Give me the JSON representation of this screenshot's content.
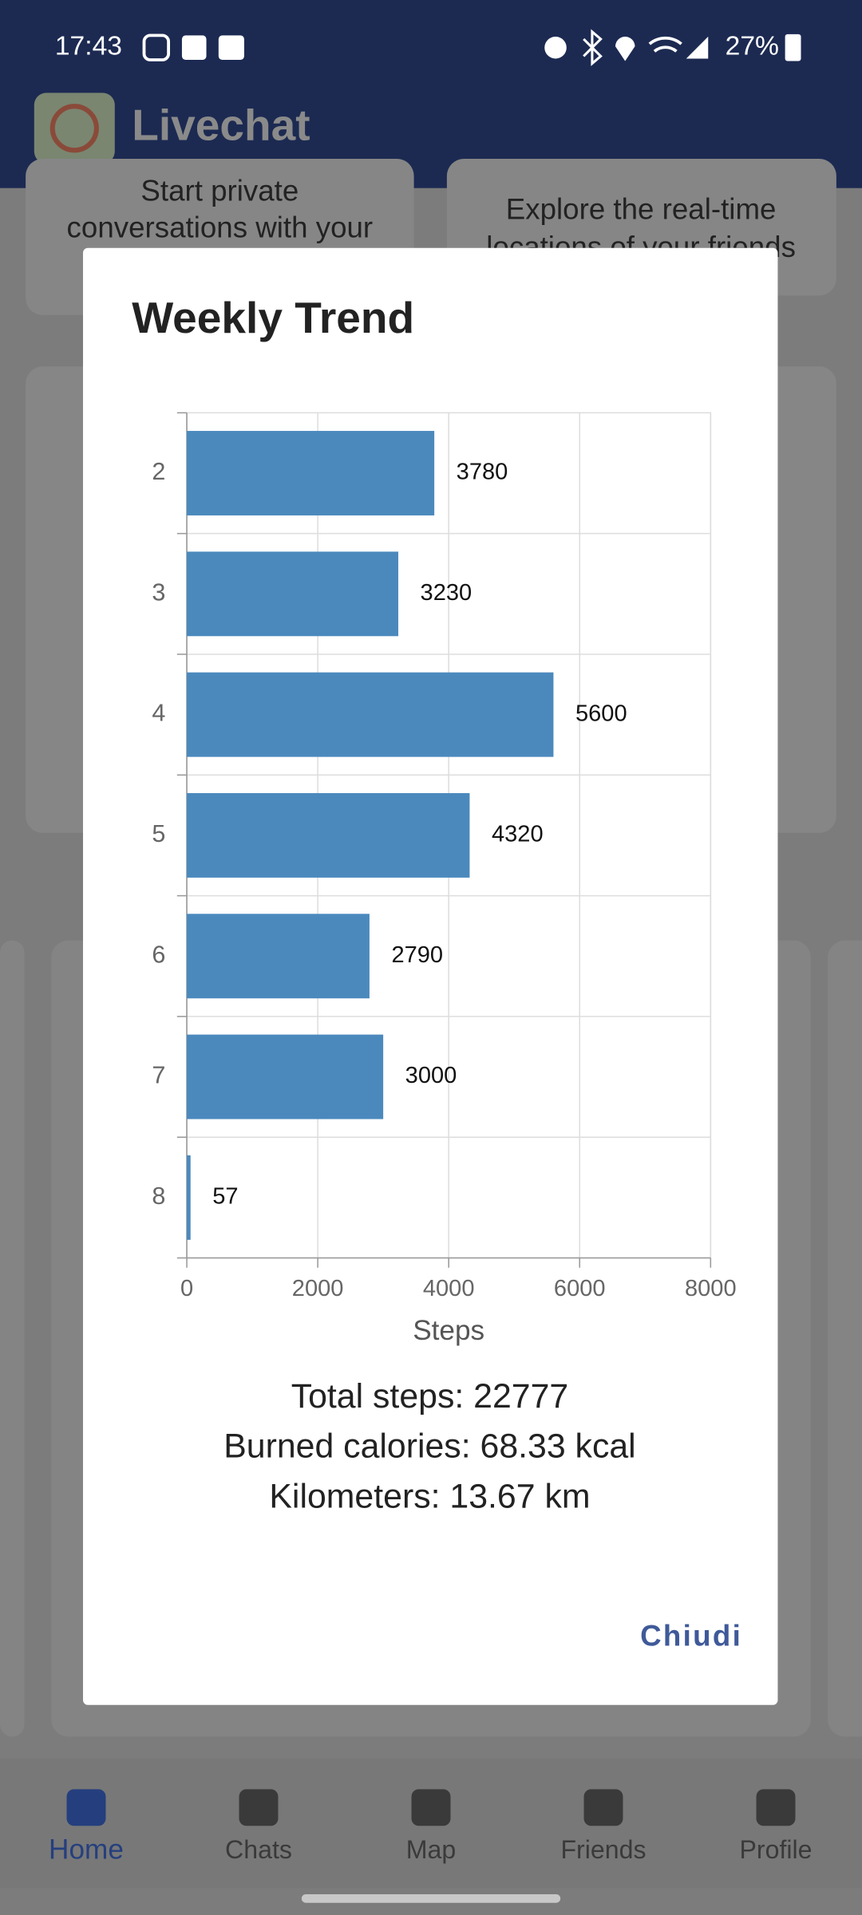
{
  "status_bar": {
    "time": "17:43",
    "battery": "27%"
  },
  "app_bar": {
    "title": "Livechat"
  },
  "background": {
    "cards": [
      [
        "Start private",
        "conversations with your"
      ],
      [
        "Explore the real-time",
        "locations of your friends"
      ]
    ]
  },
  "dialog": {
    "title": "Weekly Trend",
    "stats": [
      "Total steps: 22777",
      "Burned calories: 68.33 kcal",
      "Kilometers: 13.67 km"
    ],
    "button": "Chiudi"
  },
  "chart_data": {
    "type": "bar",
    "orientation": "horizontal",
    "categories": [
      "2",
      "3",
      "4",
      "5",
      "6",
      "7",
      "8"
    ],
    "values": [
      3780,
      3230,
      5600,
      4320,
      2790,
      3000,
      57
    ],
    "color": "#4b89bd",
    "xlabel": "Steps",
    "xlim": [
      0,
      8000
    ],
    "xticks": [
      0,
      2000,
      4000,
      6000,
      8000
    ],
    "grid": true
  },
  "nav": {
    "items": [
      "Home",
      "Chats",
      "Map",
      "Friends",
      "Profile"
    ],
    "active_index": 0
  }
}
